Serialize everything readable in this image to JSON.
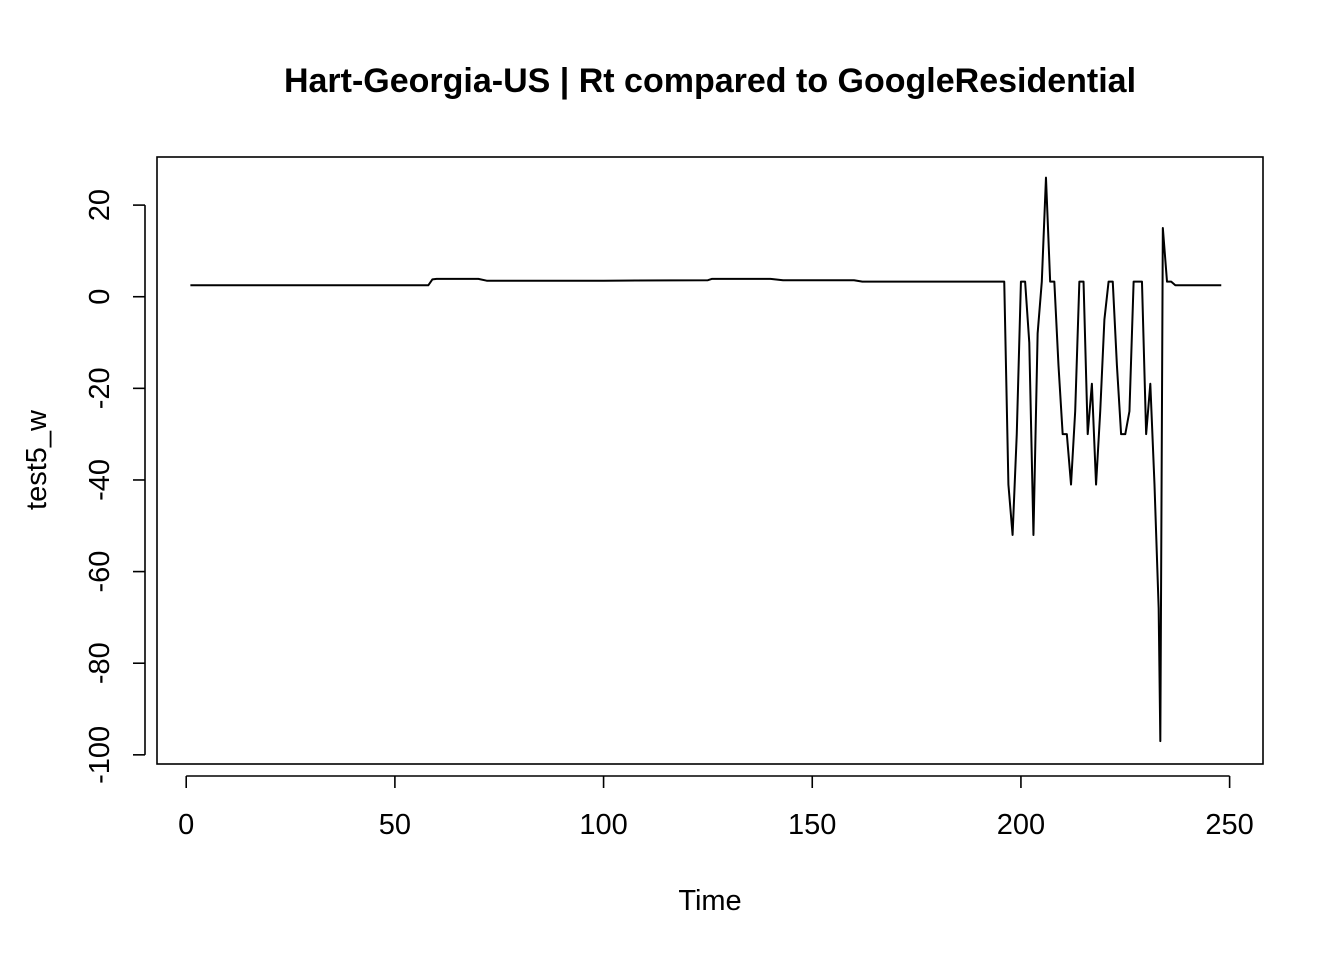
{
  "chart_data": {
    "type": "line",
    "title": "Hart-Georgia-US | Rt compared to GoogleResidential",
    "xlabel": "Time",
    "ylabel": "test5_w",
    "xlim": [
      -7,
      258
    ],
    "ylim": [
      -102,
      30.5
    ],
    "x_ticks": [
      0,
      50,
      100,
      150,
      200,
      250
    ],
    "y_ticks": [
      20,
      0,
      -20,
      -40,
      -60,
      -80,
      -100
    ],
    "grid": false,
    "legend": "none",
    "line_color": "#000000",
    "series": [
      {
        "points": [
          [
            1,
            2.5
          ],
          [
            57,
            2.5
          ],
          [
            58,
            2.5
          ],
          [
            59,
            3.8
          ],
          [
            60,
            3.9
          ],
          [
            70,
            3.9
          ],
          [
            72,
            3.5
          ],
          [
            100,
            3.5
          ],
          [
            125,
            3.6
          ],
          [
            126,
            3.9
          ],
          [
            140,
            3.9
          ],
          [
            143,
            3.6
          ],
          [
            160,
            3.6
          ],
          [
            162,
            3.3
          ],
          [
            196,
            3.3
          ],
          [
            197,
            -41
          ],
          [
            198,
            -52
          ],
          [
            199,
            -30
          ],
          [
            200,
            3.3
          ],
          [
            201,
            3.3
          ],
          [
            202,
            -10
          ],
          [
            203,
            -52
          ],
          [
            204,
            -8
          ],
          [
            205,
            3.3
          ],
          [
            206,
            26
          ],
          [
            207,
            3.3
          ],
          [
            208,
            3.3
          ],
          [
            209,
            -15
          ],
          [
            210,
            -30
          ],
          [
            211,
            -30
          ],
          [
            212,
            -41
          ],
          [
            213,
            -25
          ],
          [
            214,
            3.3
          ],
          [
            215,
            3.3
          ],
          [
            216,
            -30
          ],
          [
            217,
            -19
          ],
          [
            218,
            -41
          ],
          [
            219,
            -25
          ],
          [
            220,
            -5
          ],
          [
            221,
            3.3
          ],
          [
            222,
            3.3
          ],
          [
            223,
            -15
          ],
          [
            224,
            -30
          ],
          [
            225,
            -30
          ],
          [
            226,
            -25
          ],
          [
            227,
            3.3
          ],
          [
            228,
            3.3
          ],
          [
            229,
            3.3
          ],
          [
            230,
            -30
          ],
          [
            231,
            -19
          ],
          [
            232,
            -41
          ],
          [
            233,
            -68
          ],
          [
            233.4,
            -97
          ],
          [
            234,
            15
          ],
          [
            235,
            3.3
          ],
          [
            236,
            3.3
          ],
          [
            237,
            2.5
          ],
          [
            248,
            2.5
          ]
        ]
      }
    ]
  }
}
